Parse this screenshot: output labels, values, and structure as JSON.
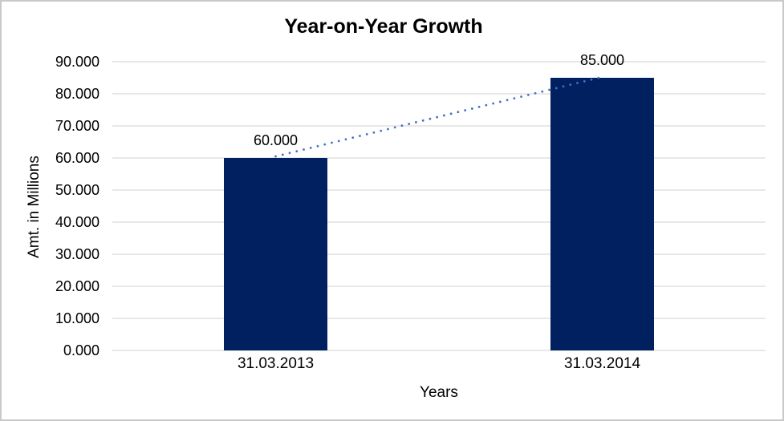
{
  "chart_data": {
    "type": "bar",
    "title": "Year-on-Year Growth",
    "xlabel": "Years",
    "ylabel": "Amt. in Millions",
    "categories": [
      "31.03.2013",
      "31.03.2014"
    ],
    "values": [
      60,
      85
    ],
    "value_labels": [
      "60.000",
      "85.000"
    ],
    "ylim": [
      0,
      90
    ],
    "yticks": [
      {
        "value": 0,
        "label": "0.000"
      },
      {
        "value": 10,
        "label": "10.000"
      },
      {
        "value": 20,
        "label": "20.000"
      },
      {
        "value": 30,
        "label": "30.000"
      },
      {
        "value": 40,
        "label": "40.000"
      },
      {
        "value": 50,
        "label": "50.000"
      },
      {
        "value": 60,
        "label": "60.000"
      },
      {
        "value": 70,
        "label": "70.000"
      },
      {
        "value": 80,
        "label": "80.000"
      },
      {
        "value": 90,
        "label": "90.000"
      }
    ],
    "grid": "horizontal",
    "legend": "none",
    "trendline": {
      "style": "dotted",
      "connects": [
        "bar-1-top",
        "bar-2-top"
      ],
      "color": "#4472C4"
    },
    "colors": {
      "bar": "#002060",
      "trendline": "#4472C4",
      "gridline": "#D9D9D9",
      "axis_line": "#D9D9D9",
      "text": "#000000",
      "background": "#FFFFFF",
      "border": "#C9C9C9"
    }
  }
}
